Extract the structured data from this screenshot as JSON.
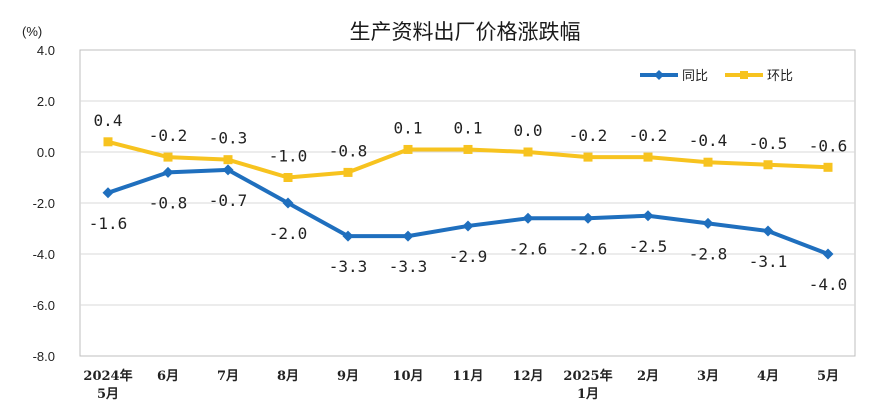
{
  "chart_data": {
    "type": "line",
    "title": "生产资料出厂价格涨跌幅",
    "unit_label": "(%)",
    "categories": [
      [
        "2024年",
        "5月"
      ],
      [
        "6月"
      ],
      [
        "7月"
      ],
      [
        "8月"
      ],
      [
        "9月"
      ],
      [
        "10月"
      ],
      [
        "11月"
      ],
      [
        "12月"
      ],
      [
        "2025年",
        "1月"
      ],
      [
        "2月"
      ],
      [
        "3月"
      ],
      [
        "4月"
      ],
      [
        "5月"
      ]
    ],
    "y_ticks": [
      "4.0",
      "2.0",
      "0.0",
      "-2.0",
      "-4.0",
      "-6.0",
      "-8.0"
    ],
    "ylim": [
      -8,
      4
    ],
    "legend_position": "top-right",
    "series": [
      {
        "name": "同比",
        "color": "#1f6fbe",
        "marker": "diamond",
        "label_position": "below",
        "values": [
          -1.6,
          -0.8,
          -0.7,
          -2.0,
          -3.3,
          -3.3,
          -2.9,
          -2.6,
          -2.6,
          -2.5,
          -2.8,
          -3.1,
          -4.0
        ],
        "labels": [
          "-1.6",
          "-0.8",
          "-0.7",
          "-2.0",
          "-3.3",
          "-3.3",
          "-2.9",
          "-2.6",
          "-2.6",
          "-2.5",
          "-2.8",
          "-3.1",
          "-4.0"
        ]
      },
      {
        "name": "环比",
        "color": "#f7c31f",
        "marker": "square",
        "label_position": "above",
        "values": [
          0.4,
          -0.2,
          -0.3,
          -1.0,
          -0.8,
          0.1,
          0.1,
          0.0,
          -0.2,
          -0.2,
          -0.4,
          -0.5,
          -0.6
        ],
        "labels": [
          "0.4",
          "-0.2",
          "-0.3",
          "-1.0",
          "-0.8",
          "0.1",
          "0.1",
          "0.0",
          "-0.2",
          "-0.2",
          "-0.4",
          "-0.5",
          "-0.6"
        ]
      }
    ]
  }
}
